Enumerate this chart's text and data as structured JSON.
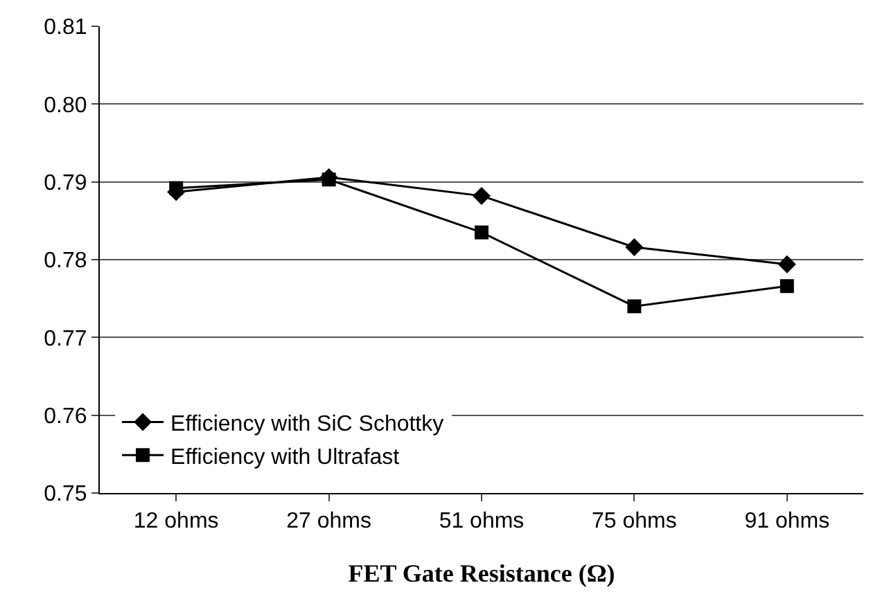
{
  "chart_data": {
    "type": "line",
    "xlabel": "FET Gate Resistance (Ω)",
    "categories": [
      "12 ohms",
      "27 ohms",
      "51 ohms",
      "75 ohms",
      "91 ohms"
    ],
    "series": [
      {
        "name": "Efficiency with SiC Schottky",
        "color": "#000000",
        "marker": "diamond",
        "values": [
          0.7887,
          0.7906,
          0.7882,
          0.7816,
          0.7794
        ]
      },
      {
        "name": "Efficiency with Ultrafast",
        "color": "#000000",
        "marker": "square",
        "values": [
          0.7892,
          0.7903,
          0.7835,
          0.774,
          0.7766
        ]
      }
    ],
    "ylim": [
      0.75,
      0.81
    ],
    "yticks": [
      0.75,
      0.76,
      0.77,
      0.78,
      0.79,
      {
        "value": 0.8,
        "label": "0.80"
      },
      0.81
    ],
    "grid": "y",
    "legend": "bottom left",
    "line_style": "solid"
  }
}
